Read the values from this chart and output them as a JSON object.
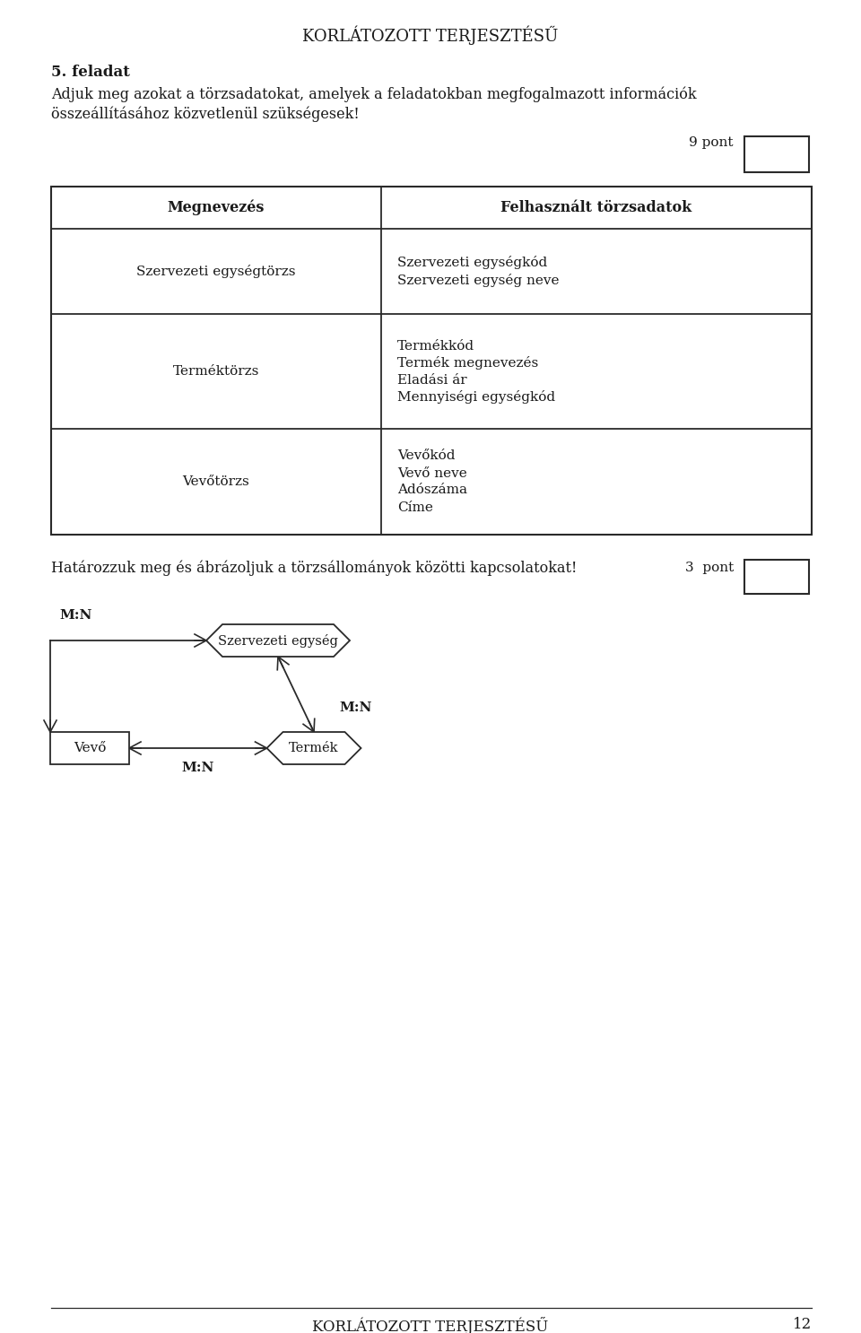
{
  "page_title": "KORLÁTOZOTT TERJESZTÉSŰ",
  "page_number": "12",
  "task_title": "5. feladat",
  "task_text_line1": "Adjuk meg azokat a törzsadatokat, amelyek a feladatokban megfogalmazott információk",
  "task_text_line2": "összeállításához közvetlenül szükségesek!",
  "points1_label": "9 pont",
  "table_header": [
    "Megnevezés",
    "Felhasznált törzsadatok"
  ],
  "table_rows": [
    [
      "Szervezeti egységtörzs",
      "Szervezeti egységkód\nSzervezeti egység neve"
    ],
    [
      "Terméktörzs",
      "Termékkód\nTermék megnevezés\nEladási ár\nMennyiségi egységkód"
    ],
    [
      "Vevőtörzs",
      "Vevőkód\nVevő neve\nAdószáma\nCíme"
    ]
  ],
  "diagram_text": "Határozzuk meg és ábrázoljuk a törzsállományok közötti kapcsolatokat!",
  "points2_label": "3  pont",
  "se_label": "Szervezeti egység",
  "vevo_label": "Vevő",
  "termek_label": "Termék",
  "mn_label": "M:N",
  "bg_color": "#ffffff",
  "text_color": "#1a1a1a",
  "line_color": "#2a2a2a"
}
